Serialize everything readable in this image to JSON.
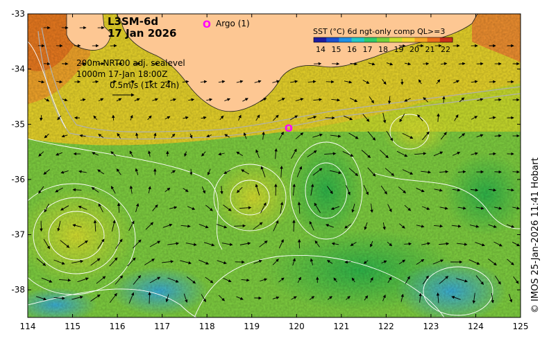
{
  "product": {
    "line1": "L3SM-6d",
    "line2": "17 Jan 2026"
  },
  "argo": {
    "marker": "O",
    "label": "Argo (1)"
  },
  "legend": {
    "title": "SST (°C) 6d ngt-only comp QL>=3",
    "ticks": [
      "14",
      "15",
      "16",
      "17",
      "18",
      "19",
      "20",
      "21",
      "22"
    ],
    "colors": [
      "#1c1ca0",
      "#1a4fd0",
      "#1e90e6",
      "#22c8c8",
      "#2ecb6a",
      "#74d23a",
      "#c8e02a",
      "#f2d52a",
      "#f5a623",
      "#ea6d1c",
      "#c9301a"
    ]
  },
  "info": {
    "contour1": "200m  NRT00 adj. sealevel",
    "contour2_depth": "1000m",
    "contour2_time": "17-Jan 18:00Z",
    "vector_scale": "0.5m/s (1kt 24h)"
  },
  "axes": {
    "x_ticks": [
      "114",
      "115",
      "116",
      "117",
      "118",
      "119",
      "120",
      "121",
      "122",
      "123",
      "124",
      "125"
    ],
    "y_ticks": [
      "-33",
      "-34",
      "-35",
      "-36",
      "-37",
      "-38"
    ],
    "x_range": [
      114,
      125
    ],
    "y_range": [
      -38.5,
      -33
    ]
  },
  "credit": "© IMOS 25-Jan-2026 11:41 Hobart",
  "colors": {
    "land": "#fdc793",
    "argo": "#ff00ff",
    "bathy": "#b0b0b0",
    "contour": "#ffffff"
  }
}
